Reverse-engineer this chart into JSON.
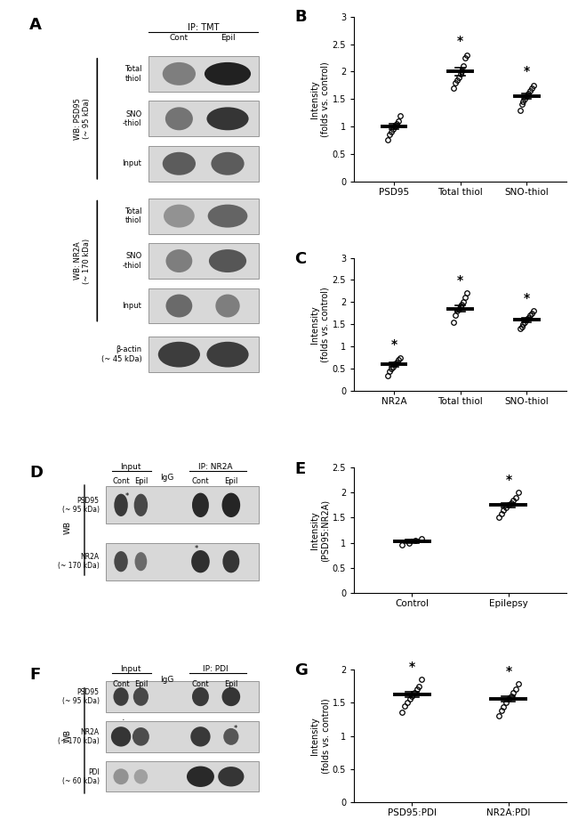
{
  "panel_B": {
    "title": "B",
    "xlabel_labels": [
      "PSD95",
      "Total thiol",
      "SNO-thiol"
    ],
    "ylabel": "Intensity\n(folds vs. control)",
    "ylim": [
      0,
      3
    ],
    "yticks": [
      0,
      0.5,
      1,
      1.5,
      2,
      2.5,
      3
    ],
    "mean": [
      1.0,
      2.0,
      1.55
    ],
    "sem": [
      0.05,
      0.07,
      0.05
    ],
    "dots": [
      [
        0.75,
        0.85,
        0.9,
        0.95,
        1.0,
        1.05,
        1.1,
        1.2
      ],
      [
        1.7,
        1.8,
        1.85,
        1.9,
        1.95,
        2.0,
        2.1,
        2.25,
        2.3
      ],
      [
        1.3,
        1.4,
        1.45,
        1.5,
        1.55,
        1.6,
        1.65,
        1.7,
        1.75
      ]
    ],
    "asterisk": [
      false,
      true,
      true
    ]
  },
  "panel_C": {
    "title": "C",
    "xlabel_labels": [
      "NR2A",
      "Total thiol",
      "SNO-thiol"
    ],
    "ylabel": "Intensity\n(folds vs. control)",
    "ylim": [
      0,
      3
    ],
    "yticks": [
      0,
      0.5,
      1,
      1.5,
      2,
      2.5,
      3
    ],
    "mean": [
      0.6,
      1.85,
      1.6
    ],
    "sem": [
      0.05,
      0.07,
      0.05
    ],
    "dots": [
      [
        0.35,
        0.45,
        0.5,
        0.55,
        0.6,
        0.65,
        0.7,
        0.75
      ],
      [
        1.55,
        1.7,
        1.8,
        1.85,
        1.9,
        1.95,
        2.0,
        2.1,
        2.2
      ],
      [
        1.4,
        1.45,
        1.5,
        1.55,
        1.6,
        1.65,
        1.7,
        1.75,
        1.8
      ]
    ],
    "asterisk": [
      true,
      true,
      true
    ]
  },
  "panel_E": {
    "title": "E",
    "xlabel_labels": [
      "Control",
      "Epilepsy"
    ],
    "ylabel": "Intensity\n(PSD95:NR2A)",
    "ylim": [
      0,
      2.5
    ],
    "yticks": [
      0,
      0.5,
      1.0,
      1.5,
      2.0,
      2.5
    ],
    "mean": [
      1.03,
      1.75
    ],
    "sem": [
      0.04,
      0.04
    ],
    "dots": [
      [
        0.95,
        1.0,
        1.05,
        1.08
      ],
      [
        1.5,
        1.58,
        1.65,
        1.7,
        1.75,
        1.8,
        1.85,
        1.9,
        2.0
      ]
    ],
    "asterisk": [
      false,
      true
    ]
  },
  "panel_G": {
    "title": "G",
    "xlabel_labels": [
      "PSD95:PDI",
      "NR2A:PDI"
    ],
    "ylabel": "Intensity\n(folds vs. control)",
    "ylim": [
      0,
      2.0
    ],
    "yticks": [
      0,
      0.5,
      1.0,
      1.5,
      2.0
    ],
    "mean": [
      1.62,
      1.55
    ],
    "sem": [
      0.04,
      0.04
    ],
    "dots": [
      [
        1.35,
        1.45,
        1.5,
        1.55,
        1.6,
        1.65,
        1.7,
        1.75,
        1.85
      ],
      [
        1.3,
        1.38,
        1.44,
        1.5,
        1.55,
        1.6,
        1.65,
        1.7,
        1.78
      ]
    ],
    "asterisk": [
      true,
      true
    ]
  }
}
